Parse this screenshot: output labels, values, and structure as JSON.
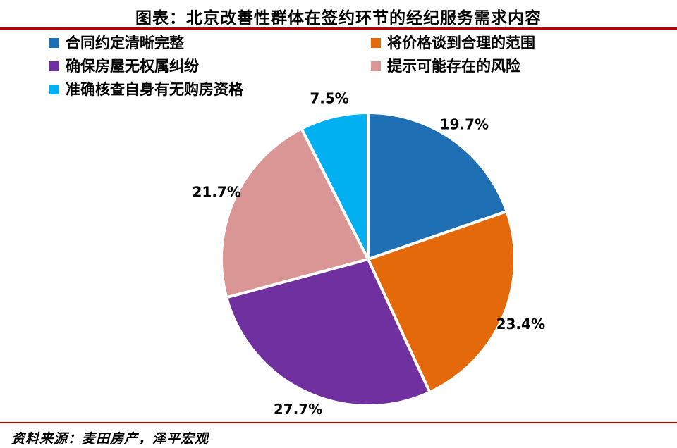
{
  "header": {
    "title": "图表：北京改善性群体在签约环节的经纪服务需求内容"
  },
  "footer": {
    "source": "资料来源：麦田房产，泽平宏观"
  },
  "colors": {
    "divider": "#C00000",
    "label_text": "#000000"
  },
  "chart_data": {
    "type": "pie",
    "title": "北京改善性群体在签约环节的经纪服务需求内容",
    "unit": "%",
    "direction": "clockwise",
    "start_angle_deg": 0,
    "legend_position": "top",
    "slices": [
      {
        "label": "合同约定清晰完整",
        "value": 19.7,
        "color": "#1F6FB5"
      },
      {
        "label": "将价格谈到合理的范围",
        "value": 23.4,
        "color": "#E3690B"
      },
      {
        "label": "确保房屋无权属纠纷",
        "value": 27.7,
        "color": "#7030A0"
      },
      {
        "label": "提示可能存在的风险",
        "value": 21.7,
        "color": "#D99694"
      },
      {
        "label": "准确核查自身有无购房资格",
        "value": 7.5,
        "color": "#00B0F0"
      }
    ]
  }
}
